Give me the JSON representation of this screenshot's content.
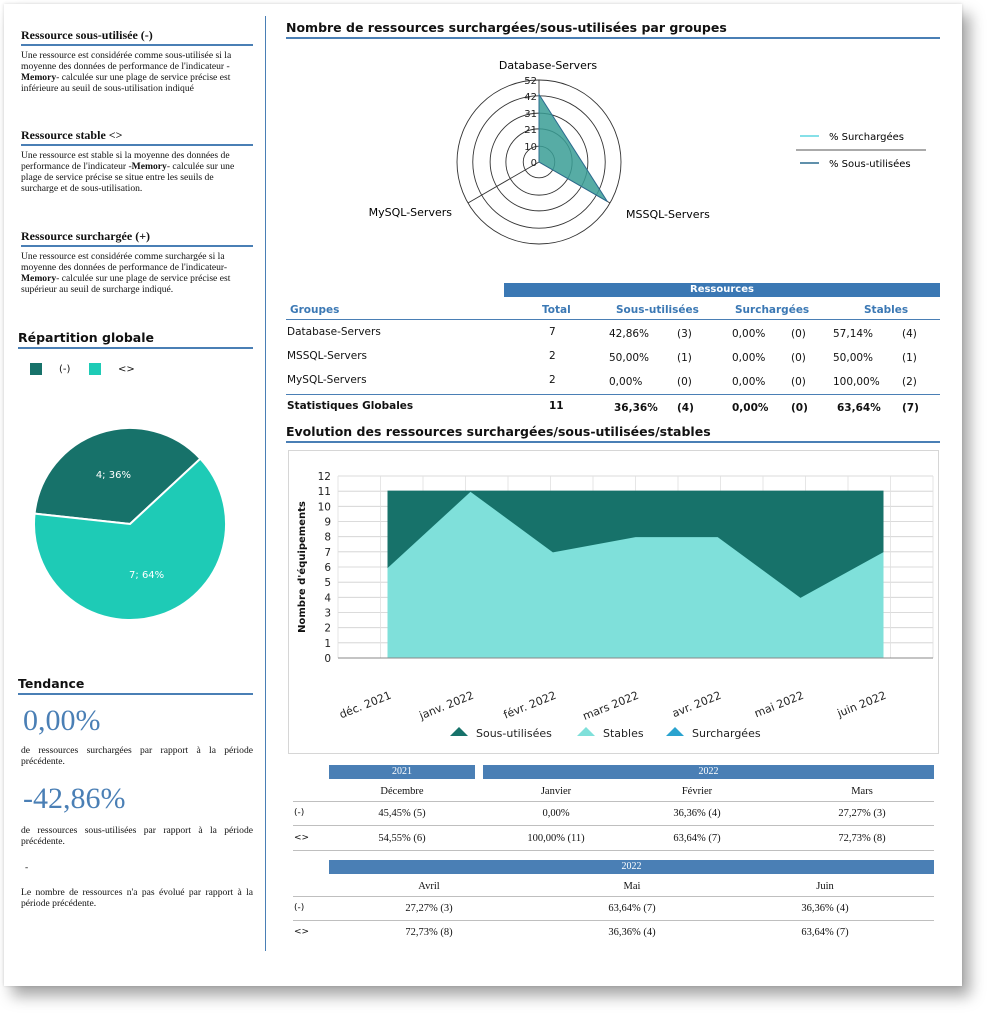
{
  "left": {
    "under": {
      "heading": "Ressource sous-utilisée (-)",
      "text_pre": "Une ressource est considérée comme sous-utilisée si la moyenne des données de performance de l'indicateur -",
      "text_bold": "Memory",
      "text_post": "- calculée sur une plage de service précise est inférieure au seuil de sous-utilisation indiqué"
    },
    "stable": {
      "heading": "Ressource stable <>",
      "text_pre": "Une ressource est stable si la moyenne des données de performance de l'indicateur -",
      "text_bold": "Memory",
      "text_post": "- calculée sur une plage de service précise se situe entre les seuils de surcharge et de sous-utilisation."
    },
    "over": {
      "heading": "Ressource surchargée (+)",
      "text_pre": "Une ressource est considérée comme surchargée si la moyenne des données de performance de l'indicateur-",
      "text_bold": "Memory",
      "text_post": "- calculée sur une plage de service précise est supérieur au seuil de surcharge indiqué."
    },
    "repartition": {
      "heading": "Répartition globale",
      "legend": [
        {
          "label": "(-)",
          "color": "#17726a"
        },
        {
          "label": "<>",
          "color": "#1ecbb6"
        }
      ]
    },
    "tendance": {
      "heading": "Tendance",
      "pct1": "0,00%",
      "text1": "de ressources surchargées par rapport à la période précédente.",
      "pct2": "-42,86%",
      "text2": "de ressources sous-utilisées par rapport à la période précédente.",
      "dash": "-",
      "text3": "Le nombre de ressources n'a pas évolué par rapport à la période précédente."
    }
  },
  "radar": {
    "title": "Nombre de ressources surchargées/sous-utilisées par groupes",
    "axes": [
      "Database-Servers",
      "MSSQL-Servers",
      "MySQL-Servers"
    ],
    "ticks": [
      "52",
      "42",
      "31",
      "21",
      "10",
      "0"
    ],
    "legend": [
      "% Surchargées",
      "% Sous-utilisées"
    ],
    "colors": {
      "over": "#5ed6e0",
      "under": "#2c6b8f",
      "fill": "#3a9e95"
    }
  },
  "groups": {
    "ressources_header": "Ressources",
    "columns": [
      "Groupes",
      "Total",
      "Sous-utilisées",
      "Surchargées",
      "Stables"
    ],
    "rows": [
      {
        "name": "Database-Servers",
        "total": "7",
        "under_pct": "42,86%",
        "under_n": "(3)",
        "over_pct": "0,00%",
        "over_n": "(0)",
        "stable_pct": "57,14%",
        "stable_n": "(4)"
      },
      {
        "name": "MSSQL-Servers",
        "total": "2",
        "under_pct": "50,00%",
        "under_n": "(1)",
        "over_pct": "0,00%",
        "over_n": "(0)",
        "stable_pct": "50,00%",
        "stable_n": "(1)"
      },
      {
        "name": "MySQL-Servers",
        "total": "2",
        "under_pct": "0,00%",
        "under_n": "(0)",
        "over_pct": "0,00%",
        "over_n": "(0)",
        "stable_pct": "100,00%",
        "stable_n": "(2)"
      }
    ],
    "total_row": {
      "name": "Statistiques Globales",
      "total": "11",
      "under_pct": "36,36%",
      "under_n": "(4)",
      "over_pct": "0,00%",
      "over_n": "(0)",
      "stable_pct": "63,64%",
      "stable_n": "(7)"
    }
  },
  "evolution": {
    "title": "Evolution des ressources surchargées/sous-utilisées/stables"
  },
  "chart_data": [
    {
      "type": "pie",
      "labels": [
        "(-)",
        "<>"
      ],
      "values": [
        4,
        7
      ],
      "data_labels": [
        "4; 36%",
        "7; 64%"
      ],
      "colors": [
        "#17726a",
        "#1ecbb6"
      ],
      "legend": "top-left"
    },
    {
      "type": "radar",
      "axes": [
        "Database-Servers",
        "MSSQL-Servers",
        "MySQL-Servers"
      ],
      "rlim": [
        0,
        52
      ],
      "ticks": [
        0,
        10,
        21,
        31,
        42,
        52
      ],
      "series": [
        {
          "name": "% Surchargées",
          "values": [
            0,
            0,
            0
          ]
        },
        {
          "name": "% Sous-utilisées",
          "values": [
            42.86,
            50,
            0
          ]
        }
      ],
      "legend": "right"
    },
    {
      "type": "area",
      "categories": [
        "déc. 2021",
        "janv. 2022",
        "févr. 2022",
        "mars 2022",
        "avr. 2022",
        "mai 2022",
        "juin 2022"
      ],
      "series": [
        {
          "name": "Sous-utilisées",
          "values": [
            5,
            0,
            4,
            3,
            3,
            7,
            4
          ],
          "color": "#17726a"
        },
        {
          "name": "Stables",
          "values": [
            6,
            11,
            7,
            8,
            8,
            4,
            7
          ],
          "color": "#7fe0da"
        },
        {
          "name": "Surchargées",
          "values": [
            0,
            0,
            0,
            0,
            0,
            0,
            0
          ],
          "color": "#2aa3cf"
        }
      ],
      "stacked": true,
      "ylabel": "Nombre d'équipements",
      "ylim": [
        0,
        12
      ],
      "yticks": [
        "0",
        "1",
        "2",
        "3",
        "4",
        "5",
        "6",
        "7",
        "8",
        "9",
        "10",
        "11",
        "12"
      ],
      "grid": true,
      "legend": "bottom"
    }
  ],
  "monthly1": {
    "year_a": "2021",
    "year_b": "2022",
    "months": [
      "Décembre",
      "Janvier",
      "Février",
      "Mars"
    ],
    "rows": [
      {
        "label": "(-)",
        "values": [
          "45,45% (5)",
          "0,00%",
          "36,36% (4)",
          "27,27% (3)"
        ]
      },
      {
        "label": "<>",
        "values": [
          "54,55% (6)",
          "100,00% (11)",
          "63,64% (7)",
          "72,73% (8)"
        ]
      }
    ]
  },
  "monthly2": {
    "year": "2022",
    "months": [
      "Avril",
      "Mai",
      "Juin"
    ],
    "rows": [
      {
        "label": "(-)",
        "values": [
          "27,27% (3)",
          "63,64% (7)",
          "36,36% (4)"
        ]
      },
      {
        "label": "<>",
        "values": [
          "72,73% (8)",
          "36,36% (4)",
          "63,64% (7)"
        ]
      }
    ]
  }
}
